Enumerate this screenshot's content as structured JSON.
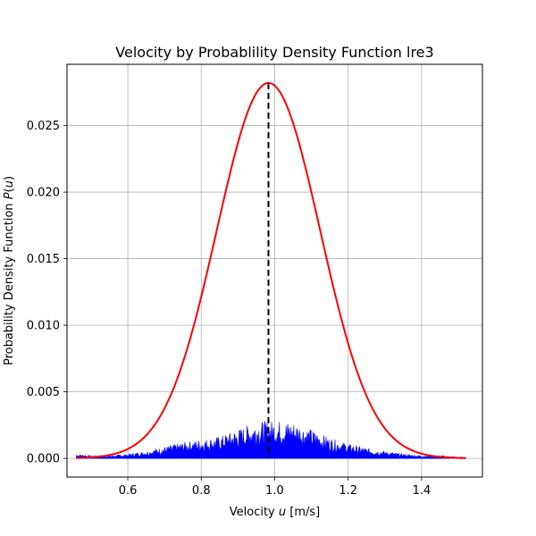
{
  "chart_data": {
    "type": "line",
    "title": "Velocity by Probablility Density Function lre3",
    "xlabel": "Velocity u [m/s]",
    "xlabel_parts": {
      "pre": "Velocity ",
      "var": "u",
      "post": " [m/s]"
    },
    "ylabel": "Probability Density Function P(u)",
    "ylabel_parts": {
      "pre": "Probability Density Function ",
      "var": "P",
      "open": "(",
      "arg": "u",
      "close": ")"
    },
    "xlim": [
      0.4345,
      1.5655
    ],
    "ylim": [
      -0.0014,
      0.0296
    ],
    "x_ticks": [
      0.6,
      0.8,
      1.0,
      1.2,
      1.4
    ],
    "x_tick_labels": [
      "0.6",
      "0.8",
      "1.0",
      "1.2",
      "1.4"
    ],
    "y_ticks": [
      0.0,
      0.005,
      0.01,
      0.015,
      0.02,
      0.025
    ],
    "y_tick_labels": [
      "0.000",
      "0.005",
      "0.010",
      "0.015",
      "0.020",
      "0.025"
    ],
    "grid": true,
    "series": [
      {
        "kind": "gaussian-pdf-curve",
        "color": "#ff0000",
        "mean": 0.983,
        "std": 0.141,
        "peak": 0.0282,
        "x_range": [
          0.46,
          1.52
        ]
      },
      {
        "kind": "histogram-fill",
        "color": "#0000ff",
        "x_range": [
          0.46,
          1.52
        ],
        "envelope_x": [
          0.46,
          0.5,
          0.55,
          0.6,
          0.65,
          0.7,
          0.75,
          0.8,
          0.85,
          0.9,
          0.95,
          1.0,
          1.05,
          1.1,
          1.15,
          1.2,
          1.25,
          1.3,
          1.35,
          1.4,
          1.45,
          1.5,
          1.52
        ],
        "envelope_y": [
          0.0003,
          0.0002,
          0.0002,
          0.0003,
          0.0005,
          0.0008,
          0.0011,
          0.0013,
          0.0015,
          0.002,
          0.0025,
          0.0026,
          0.0025,
          0.002,
          0.0014,
          0.001,
          0.0007,
          0.0005,
          0.0003,
          0.0002,
          0.0002,
          0.0001,
          0.0001
        ]
      },
      {
        "kind": "mean-line",
        "color": "#000000",
        "x": 0.983,
        "y_top": 0.0282
      }
    ]
  }
}
